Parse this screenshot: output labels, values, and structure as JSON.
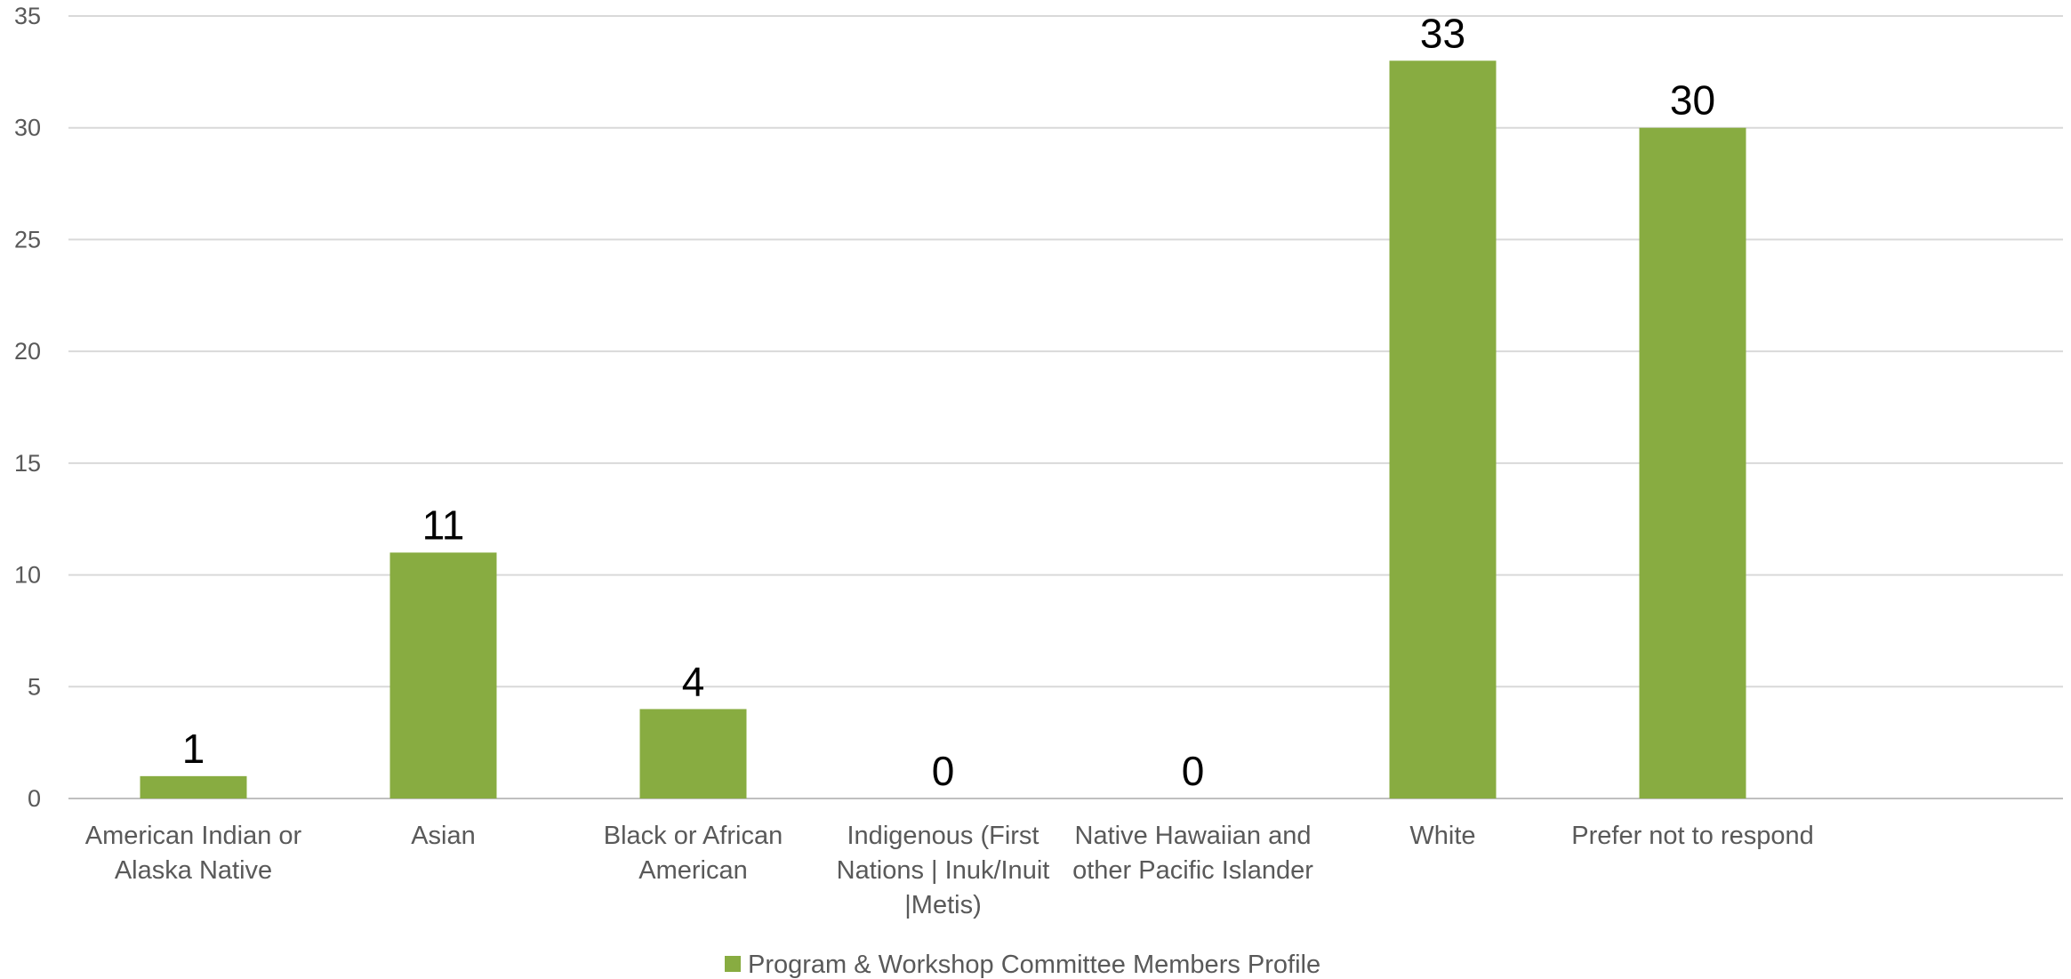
{
  "chart_data": {
    "type": "bar",
    "categories": [
      [
        "American Indian or",
        "Alaska Native"
      ],
      [
        "Asian"
      ],
      [
        "Black or African",
        "American"
      ],
      [
        "Indigenous (First",
        "Nations | Inuk/Inuit",
        "|Metis)"
      ],
      [
        "Native Hawaiian and",
        "other Pacific Islander"
      ],
      [
        "White"
      ],
      [
        "Prefer not to respond"
      ]
    ],
    "series": [
      {
        "name": "Program & Workshop Committee Members Profile",
        "values": [
          1,
          11,
          4,
          0,
          0,
          33,
          30
        ],
        "color": "#88AC41"
      }
    ],
    "ylim": [
      0,
      35
    ],
    "yticks": [
      0,
      5,
      10,
      15,
      20,
      25,
      30,
      35
    ],
    "grid": true,
    "legend": "bottom",
    "data_labels": true
  }
}
